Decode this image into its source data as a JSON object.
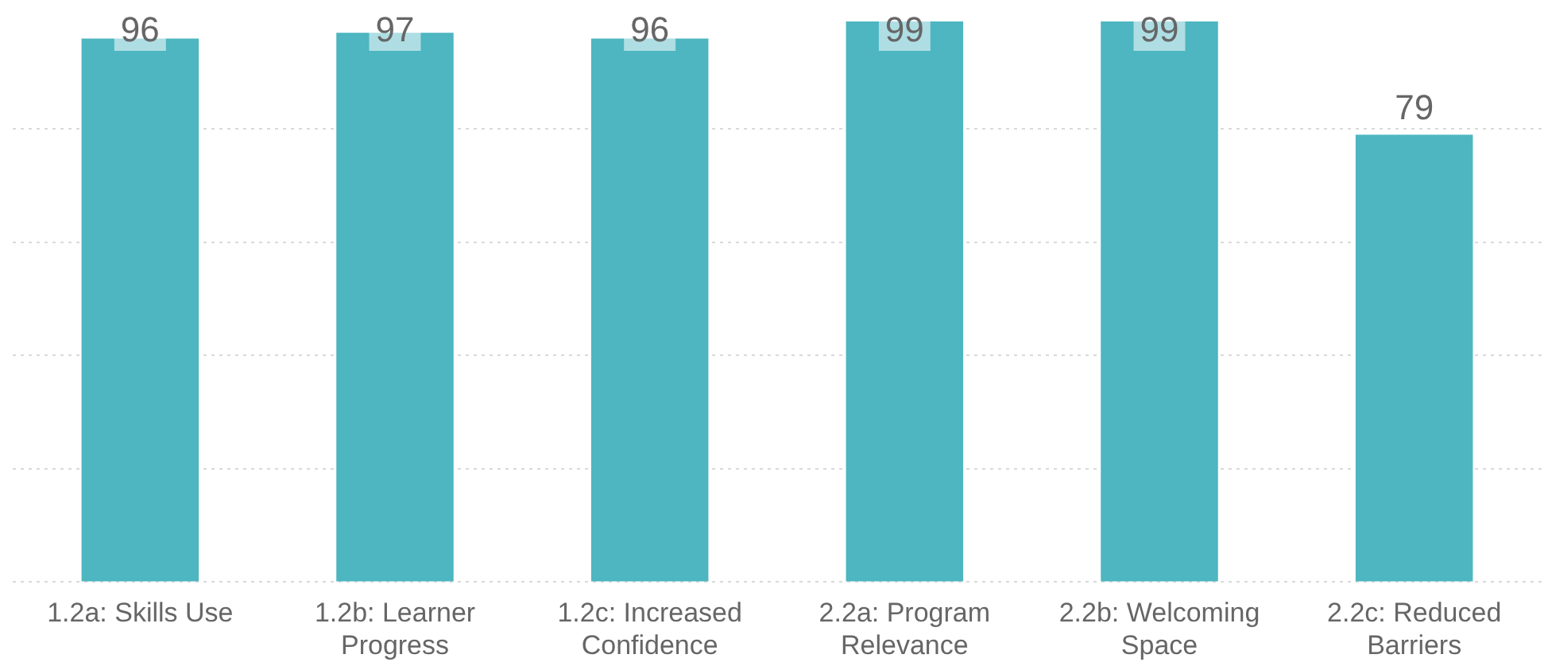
{
  "chart_data": {
    "type": "bar",
    "categories": [
      "1.2a: Skills Use",
      "1.2b: Learner Progress",
      "1.2c: Increased Confidence",
      "2.2a: Program Relevance",
      "2.2b: Welcoming Space",
      "2.2c: Reduced Barriers"
    ],
    "values": [
      96,
      97,
      96,
      99,
      99,
      79
    ],
    "color": "#4db6c0",
    "data_labels": true,
    "ylim": [
      0,
      100
    ],
    "yticks": [
      {
        "value": 0,
        "label": null
      },
      {
        "value": 20,
        "label": null
      },
      {
        "value": 40,
        "label": null
      },
      {
        "value": 60,
        "label": null
      },
      {
        "value": 80,
        "label": null
      }
    ],
    "grid": "y",
    "tick_labels": "x",
    "legend": false
  }
}
